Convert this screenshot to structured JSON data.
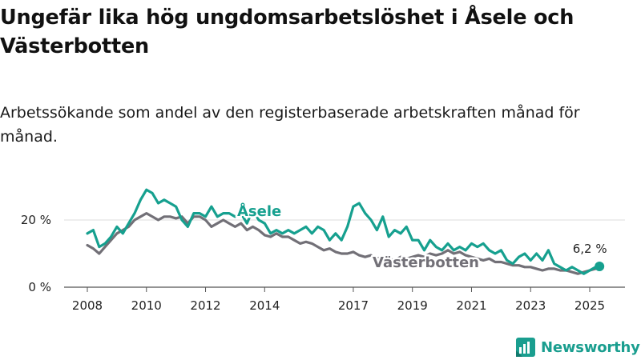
{
  "title": "Ungefär lika hög ungdomsarbetslöshet i Åsele och Västerbotten",
  "subtitle": "Arbetssökande som andel av den registerbaserade arbetskraften månad för månad.",
  "logo_text": "Newsworthy",
  "colors": {
    "asele": "#16a08f",
    "vasterbotten": "#727077",
    "brand": "#1a9e8f"
  },
  "chart_data": {
    "type": "line",
    "title": "Ungefär lika hög ungdomsarbetslöshet i Åsele och Västerbotten",
    "subtitle": "Arbetssökande som andel av den registerbaserade arbetskraften månad för månad.",
    "xlabel": "",
    "ylabel": "",
    "x_ticks": [
      2008,
      2010,
      2012,
      2014,
      2017,
      2019,
      2021,
      2023,
      2025
    ],
    "x_tick_labels": [
      "2008",
      "2010",
      "2012",
      "2014",
      "2017",
      "2019",
      "2021",
      "2023",
      "2025"
    ],
    "y_ticks": [
      0,
      20
    ],
    "y_tick_labels": [
      "0 %",
      "20 %"
    ],
    "ylim": [
      0,
      30
    ],
    "xlim": [
      2007.1,
      2025.9
    ],
    "grid": true,
    "legend": "direct labels on lines",
    "last_value_label": "6,2 %",
    "series": [
      {
        "name": "Åsele",
        "x": [
          2008.0,
          2008.2,
          2008.4,
          2008.6,
          2008.8,
          2009.0,
          2009.2,
          2009.4,
          2009.6,
          2009.8,
          2010.0,
          2010.2,
          2010.4,
          2010.6,
          2010.8,
          2011.0,
          2011.2,
          2011.4,
          2011.6,
          2011.8,
          2012.0,
          2012.2,
          2012.4,
          2012.6,
          2012.8,
          2013.0,
          2013.2,
          2013.4,
          2013.6,
          2013.8,
          2014.0,
          2014.2,
          2014.4,
          2014.6,
          2014.8,
          2015.0,
          2015.2,
          2015.4,
          2015.6,
          2015.8,
          2016.0,
          2016.2,
          2016.4,
          2016.6,
          2016.8,
          2017.0,
          2017.2,
          2017.4,
          2017.6,
          2017.8,
          2018.0,
          2018.2,
          2018.4,
          2018.6,
          2018.8,
          2019.0,
          2019.2,
          2019.4,
          2019.6,
          2019.8,
          2020.0,
          2020.2,
          2020.4,
          2020.6,
          2020.8,
          2021.0,
          2021.2,
          2021.4,
          2021.6,
          2021.8,
          2022.0,
          2022.2,
          2022.4,
          2022.6,
          2022.8,
          2023.0,
          2023.2,
          2023.4,
          2023.6,
          2023.8,
          2024.0,
          2024.2,
          2024.4,
          2024.6,
          2024.8,
          2025.0,
          2025.2,
          2025.33
        ],
        "values": [
          16,
          17,
          12,
          13,
          15,
          18,
          16,
          19,
          22,
          26,
          29,
          28,
          25,
          26,
          25,
          24,
          20,
          18,
          22,
          22,
          21,
          24,
          21,
          22,
          22,
          21,
          22,
          19,
          23,
          20,
          19,
          16,
          17,
          16,
          17,
          16,
          17,
          18,
          16,
          18,
          17,
          14,
          16,
          14,
          18,
          24,
          25,
          22,
          20,
          17,
          21,
          15,
          17,
          16,
          18,
          14,
          14,
          11,
          14,
          12,
          11,
          13,
          11,
          12,
          11,
          13,
          12,
          13,
          11,
          10,
          11,
          8,
          7,
          9,
          10,
          8,
          10,
          8,
          11,
          7,
          6,
          5,
          6,
          5,
          4,
          5,
          6,
          6.2
        ]
      },
      {
        "name": "Västerbotten",
        "x": [
          2008.0,
          2008.2,
          2008.4,
          2008.6,
          2008.8,
          2009.0,
          2009.2,
          2009.4,
          2009.6,
          2009.8,
          2010.0,
          2010.2,
          2010.4,
          2010.6,
          2010.8,
          2011.0,
          2011.2,
          2011.4,
          2011.6,
          2011.8,
          2012.0,
          2012.2,
          2012.4,
          2012.6,
          2012.8,
          2013.0,
          2013.2,
          2013.4,
          2013.6,
          2013.8,
          2014.0,
          2014.2,
          2014.4,
          2014.6,
          2014.8,
          2015.0,
          2015.2,
          2015.4,
          2015.6,
          2015.8,
          2016.0,
          2016.2,
          2016.4,
          2016.6,
          2016.8,
          2017.0,
          2017.2,
          2017.4,
          2017.6,
          2017.8,
          2018.0,
          2018.2,
          2018.4,
          2018.6,
          2018.8,
          2019.0,
          2019.2,
          2019.4,
          2019.6,
          2019.8,
          2020.0,
          2020.2,
          2020.4,
          2020.6,
          2020.8,
          2021.0,
          2021.2,
          2021.4,
          2021.6,
          2021.8,
          2022.0,
          2022.2,
          2022.4,
          2022.6,
          2022.8,
          2023.0,
          2023.2,
          2023.4,
          2023.6,
          2023.8,
          2024.0,
          2024.2,
          2024.4,
          2024.6,
          2024.8,
          2025.0,
          2025.2,
          2025.33
        ],
        "values": [
          12.5,
          11.5,
          10,
          12,
          14,
          16,
          17,
          18,
          20,
          21,
          22,
          21,
          20,
          21,
          21,
          20.5,
          21,
          19,
          21,
          21,
          20,
          18,
          19,
          20,
          19,
          18,
          19,
          17,
          18,
          17,
          15.5,
          15,
          16,
          15,
          15,
          14,
          13,
          13.5,
          13,
          12,
          11,
          11.5,
          10.5,
          10,
          10,
          10.5,
          9.5,
          9,
          9.5,
          8.5,
          9,
          8.5,
          8,
          9,
          8.5,
          9,
          9.5,
          9,
          10,
          9.5,
          10,
          11,
          10,
          10.5,
          9.5,
          9,
          8.5,
          8,
          8.5,
          7.5,
          7.5,
          7,
          6.5,
          6.5,
          6,
          6,
          5.5,
          5,
          5.5,
          5.5,
          5,
          5,
          4.5,
          4,
          4.5,
          5,
          5.5,
          5.5
        ]
      }
    ]
  }
}
